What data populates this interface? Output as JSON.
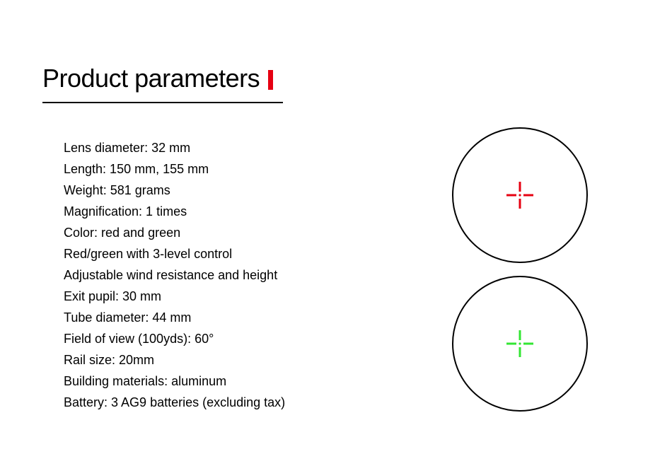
{
  "title": "Product parameters",
  "accent_color": "#e60012",
  "parameters": [
    "Lens diameter: 32 mm",
    "Length: 150 mm, 155 mm",
    "Weight: 581 grams",
    "Magnification: 1 times",
    "Color: red and green",
    "Red/green with 3-level control",
    "Adjustable wind resistance and height",
    "Exit pupil: 30 mm",
    "Tube diameter: 44 mm",
    "Field of view (100yds): 60°",
    "Rail size: 20mm",
    "Building materials: aluminum",
    "Battery: 3 AG9 batteries (excluding tax)"
  ],
  "reticles": {
    "red": {
      "color": "#e60012",
      "stroke_width": 3,
      "arm_length": 14,
      "gap": 5,
      "dot_radius": 1.6
    },
    "green": {
      "color": "#33e633",
      "stroke_width": 3,
      "arm_length": 14,
      "gap": 5,
      "dot_radius": 1.6
    }
  },
  "circle": {
    "diameter": 192,
    "border_color": "#000000",
    "border_width": 2
  },
  "text_color": "#000000",
  "param_fontsize": 18,
  "param_lineheight": 30,
  "title_fontsize": 36,
  "background_color": "#ffffff"
}
